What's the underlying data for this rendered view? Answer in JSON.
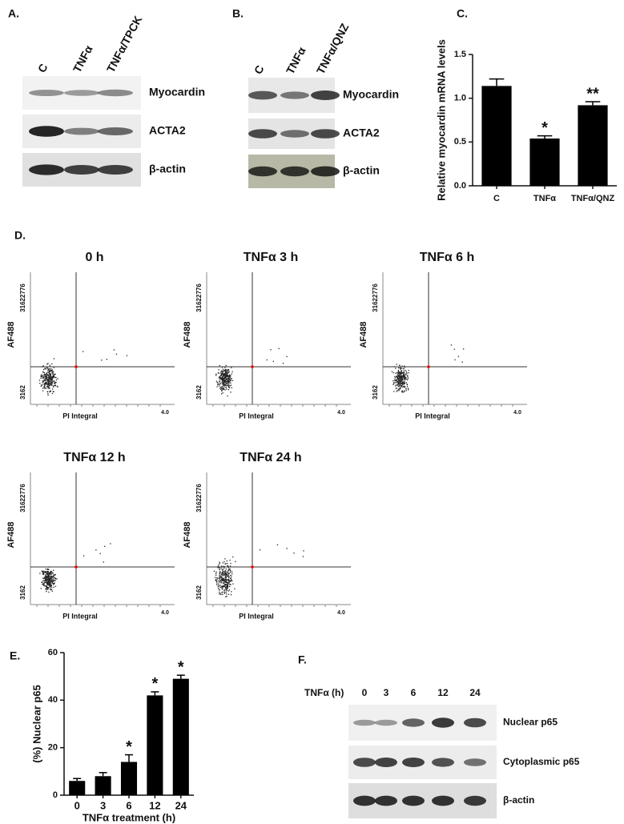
{
  "panels": {
    "A": {
      "label": "A.",
      "lanes": [
        "C",
        "TNFα",
        "TNFα/TPCK"
      ],
      "rows": [
        "Myocardin",
        "ACTA2",
        "β-actin"
      ]
    },
    "B": {
      "label": "B.",
      "lanes": [
        "C",
        "TNFα",
        "TNFα/QNZ"
      ],
      "rows": [
        "Myocardin",
        "ACTA2",
        "β-actin"
      ]
    },
    "D": {
      "label": "D.",
      "y_label": "AF488",
      "x_label": "PI Integral",
      "y_tick_labels": [
        "31622776",
        "3162"
      ],
      "x_tick_label": "4.0",
      "plots": [
        "0 h",
        "TNFα 3 h",
        "TNFα 6 h",
        "TNFα 12 h",
        "TNFα 24 h"
      ]
    },
    "F": {
      "label": "F.",
      "lane_header": "TNFα (h)",
      "lanes": [
        "0",
        "3",
        "6",
        "12",
        "24"
      ],
      "rows": [
        "Nuclear p65",
        "Cytoplasmic p65",
        "β-actin"
      ]
    }
  },
  "chart_data": [
    {
      "type": "bar",
      "panel_label": "C.",
      "y_label": "Relative myocardin mRNA levels",
      "categories": [
        "C",
        "TNFα",
        "TNFα/QNZ"
      ],
      "values": [
        1.14,
        0.54,
        0.92
      ],
      "errors": [
        0.08,
        0.03,
        0.04
      ],
      "markers": [
        null,
        "*",
        "**"
      ],
      "color": "#000000",
      "ylim": [
        0,
        1.5
      ],
      "yticks": [
        {
          "value": 0,
          "label": "0.0"
        },
        {
          "value": 0.5,
          "label": "0.5"
        },
        {
          "value": 1,
          "label": "1.0"
        },
        {
          "value": 1.5,
          "label": "1.5"
        }
      ]
    },
    {
      "type": "bar",
      "panel_label": "E.",
      "y_label": "(%) Nuclear p65",
      "x_label": "TNFα treatment  (h)",
      "categories": [
        "0",
        "3",
        "6",
        "12",
        "24"
      ],
      "values": [
        6,
        8,
        14,
        42,
        49
      ],
      "errors": [
        1,
        1.5,
        3,
        1.5,
        1.5
      ],
      "markers": [
        null,
        null,
        "*",
        "*",
        "*"
      ],
      "color": "#000000",
      "ylim": [
        0,
        60
      ],
      "yticks": [
        0,
        20,
        40,
        60
      ]
    }
  ]
}
